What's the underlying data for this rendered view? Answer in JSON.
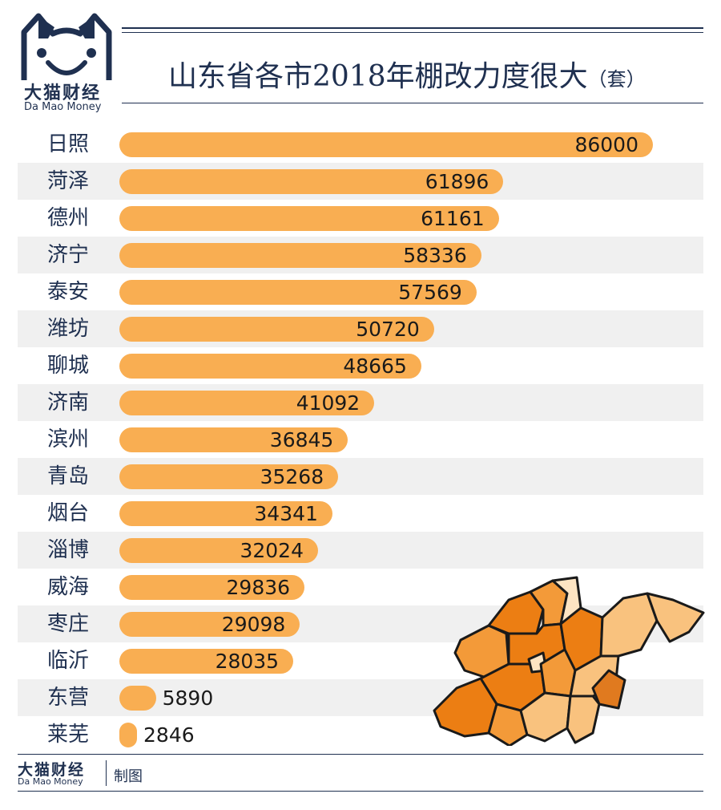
{
  "logo": {
    "name_cn": "大猫财经",
    "name_en": "Da Mao Money"
  },
  "header": {
    "title": "山东省各市2018年棚改力度很大",
    "unit": "（套）"
  },
  "chart_data": {
    "type": "bar",
    "orientation": "horizontal",
    "title": "山东省各市2018年棚改力度很大",
    "unit": "（套）",
    "categories": [
      "日照",
      "菏泽",
      "德州",
      "济宁",
      "泰安",
      "潍坊",
      "聊城",
      "济南",
      "滨州",
      "青岛",
      "烟台",
      "淄博",
      "威海",
      "枣庄",
      "临沂",
      "东营",
      "莱芜"
    ],
    "values": [
      86000,
      61896,
      61161,
      58336,
      57569,
      50720,
      48665,
      41092,
      36845,
      35268,
      34341,
      32024,
      29836,
      29098,
      28035,
      5890,
      2846
    ],
    "value_labels": [
      "86000",
      "61896",
      "61161",
      "58336",
      "57569",
      "50720",
      "48665",
      "41092",
      "36845",
      "35268",
      "34341",
      "32024",
      "29836",
      "29098",
      "28035",
      "5890",
      "2846"
    ],
    "bar_color": "#f9ae52",
    "band_color": "#f0f0f0",
    "xlim": [
      0,
      86000
    ]
  },
  "footer": {
    "name_cn": "大猫财经",
    "name_en": "Da Mao Money",
    "credit": "制图"
  },
  "colors": {
    "navy": "#1f3050",
    "bar": "#f9ae52",
    "map_dark": "#ec7e13",
    "map_mid": "#f39a39",
    "map_light": "#f9c27e",
    "map_pale": "#fde4c2"
  },
  "icons": {
    "logo": "cat-face-icon",
    "map": "shandong-map-icon"
  }
}
